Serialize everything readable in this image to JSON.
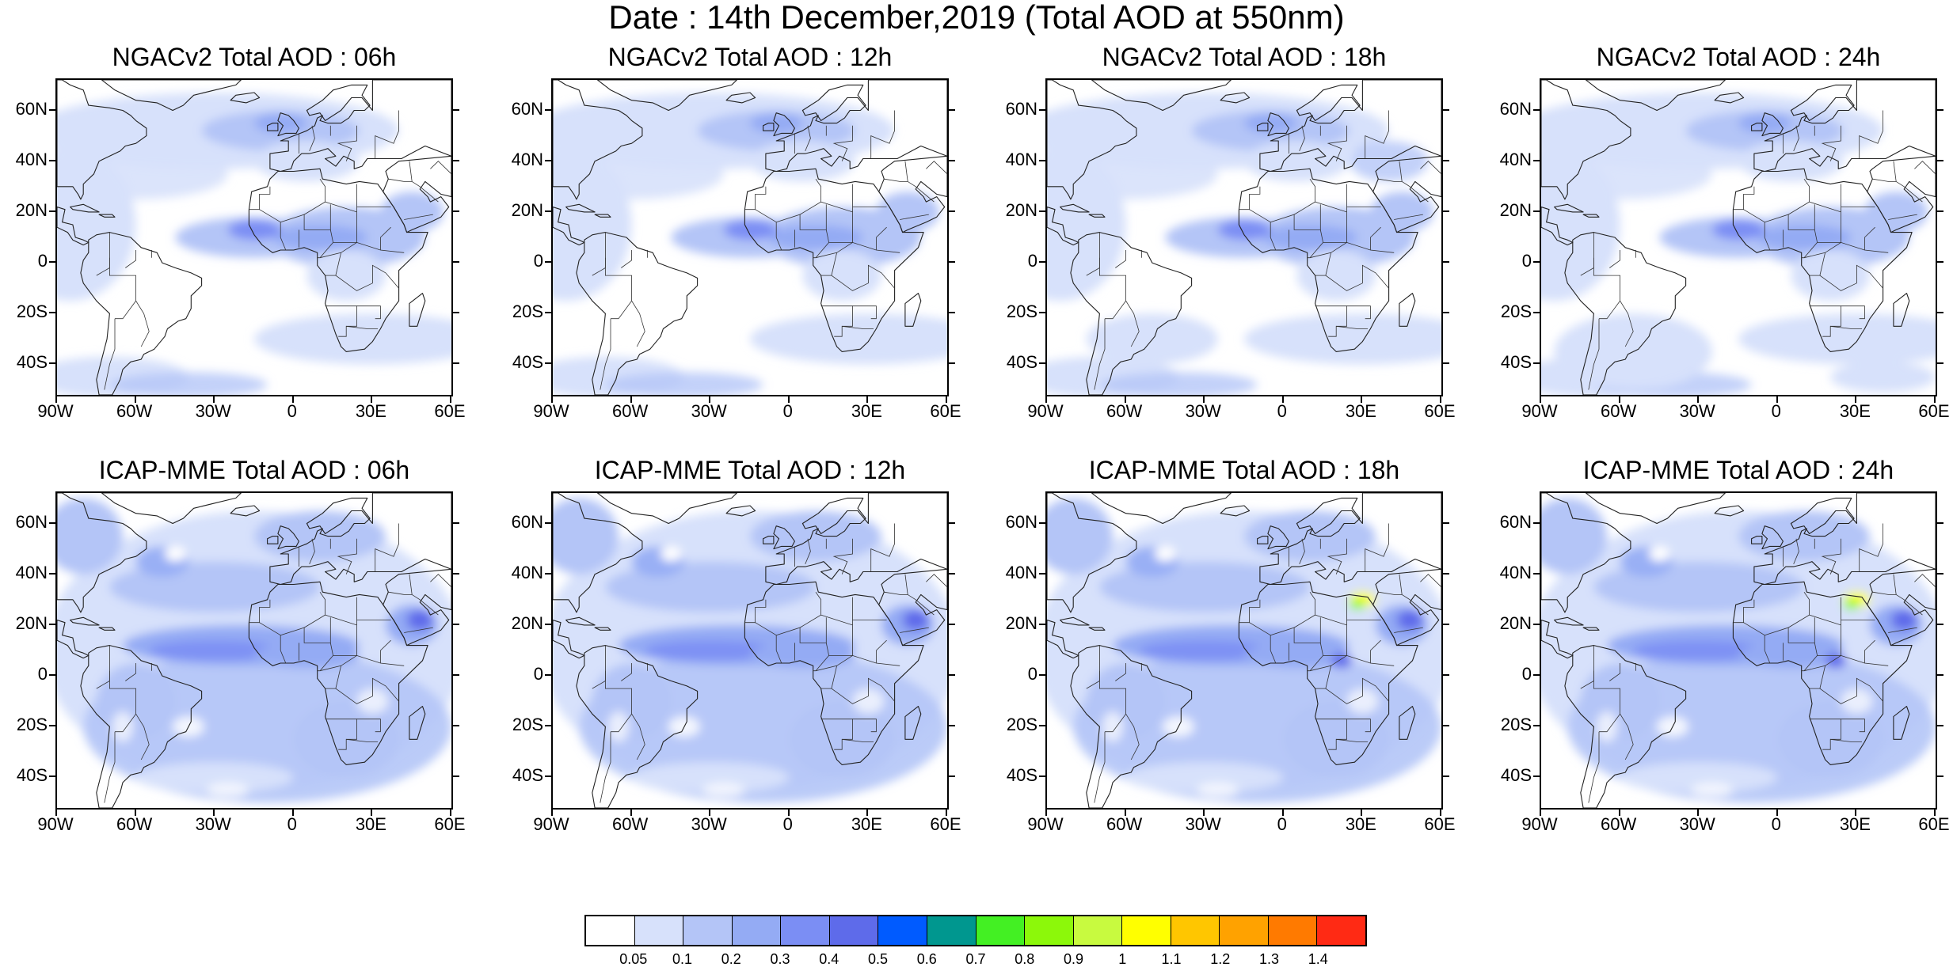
{
  "figure_title": "Date : 14th December,2019 (Total AOD at 550nm)",
  "panels": [
    {
      "title": "NGACv2 Total AOD : 06h",
      "model": "ngac"
    },
    {
      "title": "NGACv2 Total AOD : 12h",
      "model": "ngac"
    },
    {
      "title": "NGACv2 Total AOD : 18h",
      "model": "ngac"
    },
    {
      "title": "NGACv2 Total AOD : 24h",
      "model": "ngac"
    },
    {
      "title": "ICAP-MME Total AOD : 06h",
      "model": "icap"
    },
    {
      "title": "ICAP-MME Total AOD : 12h",
      "model": "icap"
    },
    {
      "title": "ICAP-MME Total AOD : 18h",
      "model": "icap"
    },
    {
      "title": "ICAP-MME Total AOD : 24h",
      "model": "icap"
    }
  ],
  "axes": {
    "lat_labels": [
      "60N",
      "40N",
      "20N",
      "0",
      "20S",
      "40S"
    ],
    "lon_labels": [
      "90W",
      "60W",
      "30W",
      "0",
      "30E",
      "60E"
    ],
    "lat_range": [
      -52,
      72
    ],
    "lon_range": [
      -90,
      60
    ]
  },
  "colorbar": {
    "colors": [
      "#ffffff",
      "#d7e1fb",
      "#b4c5f7",
      "#94abf4",
      "#7b8ef4",
      "#5e6bea",
      "#005bff",
      "#00978f",
      "#43f023",
      "#8cf80a",
      "#c8fa3f",
      "#ffff00",
      "#ffc600",
      "#ffa200",
      "#ff7a00",
      "#ff2a14"
    ],
    "labels": [
      "0.05",
      "0.1",
      "0.2",
      "0.3",
      "0.4",
      "0.5",
      "0.6",
      "0.7",
      "0.8",
      "0.9",
      "1",
      "1.1",
      "1.2",
      "1.3",
      "1.4"
    ]
  },
  "chart_data": {
    "type": "heatmap",
    "title": "Date : 14th December,2019 (Total AOD at 550nm)",
    "variable": "Total AOD at 550nm",
    "date": "14th December,2019",
    "lon_range": [
      -90,
      60
    ],
    "lat_range": [
      -52,
      72
    ],
    "contour_levels": [
      0.05,
      0.1,
      0.2,
      0.3,
      0.4,
      0.5,
      0.6,
      0.7,
      0.8,
      0.9,
      1,
      1.1,
      1.2,
      1.3,
      1.4
    ],
    "panels": [
      {
        "model": "NGACv2",
        "forecast_hour": "06h"
      },
      {
        "model": "NGACv2",
        "forecast_hour": "12h"
      },
      {
        "model": "NGACv2",
        "forecast_hour": "18h"
      },
      {
        "model": "NGACv2",
        "forecast_hour": "24h"
      },
      {
        "model": "ICAP-MME",
        "forecast_hour": "06h"
      },
      {
        "model": "ICAP-MME",
        "forecast_hour": "12h"
      },
      {
        "model": "ICAP-MME",
        "forecast_hour": "18h"
      },
      {
        "model": "ICAP-MME",
        "forecast_hour": "24h"
      }
    ]
  }
}
